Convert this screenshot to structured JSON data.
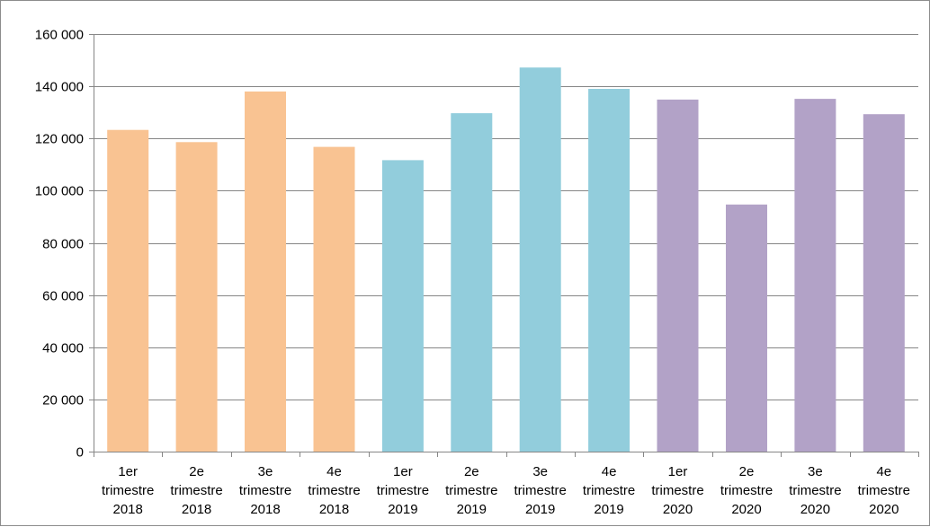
{
  "chart_data": {
    "type": "bar",
    "categories": [
      [
        "1er",
        "trimestre",
        "2018"
      ],
      [
        "2e",
        "trimestre",
        "2018"
      ],
      [
        "3e",
        "trimestre",
        "2018"
      ],
      [
        "4e",
        "trimestre",
        "2018"
      ],
      [
        "1er",
        "trimestre",
        "2019"
      ],
      [
        "2e",
        "trimestre",
        "2019"
      ],
      [
        "3e",
        "trimestre",
        "2019"
      ],
      [
        "4e",
        "trimestre",
        "2019"
      ],
      [
        "1er",
        "trimestre",
        "2020"
      ],
      [
        "2e",
        "trimestre",
        "2020"
      ],
      [
        "3e",
        "trimestre",
        "2020"
      ],
      [
        "4e",
        "trimestre",
        "2020"
      ]
    ],
    "values": [
      123300,
      118600,
      138000,
      116800,
      111700,
      129700,
      147200,
      139000,
      134900,
      94700,
      135200,
      129300
    ],
    "bar_colors": [
      "#f9c392",
      "#f9c392",
      "#f9c392",
      "#f9c392",
      "#92cddc",
      "#92cddc",
      "#92cddc",
      "#92cddc",
      "#b2a2c7",
      "#b2a2c7",
      "#b2a2c7",
      "#b2a2c7"
    ],
    "ylim": [
      0,
      160000
    ],
    "yticks": [
      0,
      20000,
      40000,
      60000,
      80000,
      100000,
      120000,
      140000,
      160000
    ],
    "ytick_labels": [
      "0",
      "20 000",
      "40 000",
      "60 000",
      "80 000",
      "100 000",
      "120 000",
      "140 000",
      "160 000"
    ],
    "grid": true,
    "legend": "none"
  }
}
